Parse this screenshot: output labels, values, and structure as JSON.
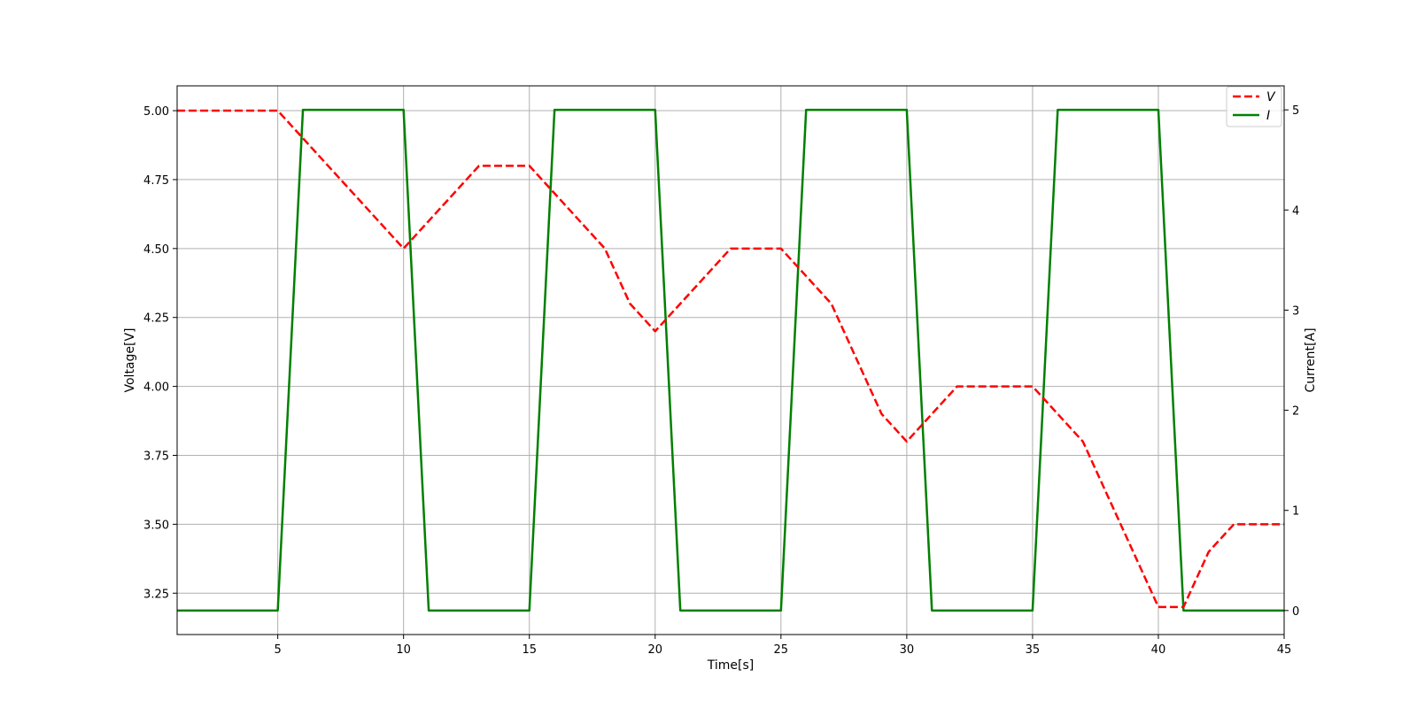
{
  "chart_data": {
    "type": "line",
    "title": "",
    "xlabel": "Time[s]",
    "ylabel": "Voltage[V]",
    "y2label": "Current[A]",
    "xlim": [
      1,
      45
    ],
    "ylim": [
      3.1,
      5.09
    ],
    "y2lim": [
      -0.24,
      5.24
    ],
    "x_ticks": [
      "5",
      "10",
      "15",
      "20",
      "25",
      "30",
      "35",
      "40",
      "45"
    ],
    "y_ticks": [
      "3.25",
      "3.50",
      "3.75",
      "4.00",
      "4.25",
      "4.50",
      "4.75",
      "5.00"
    ],
    "y2_ticks": [
      "0",
      "1",
      "2",
      "3",
      "4",
      "5"
    ],
    "grid": true,
    "legend_position": "top-right",
    "series": [
      {
        "name": "V",
        "axis": "left",
        "color": "#ff0000",
        "style": "dashed",
        "x": [
          1,
          2,
          3,
          4,
          5,
          6,
          7,
          8,
          9,
          10,
          11,
          12,
          13,
          14,
          15,
          16,
          17,
          18,
          19,
          20,
          21,
          22,
          23,
          24,
          25,
          26,
          27,
          28,
          29,
          30,
          31,
          32,
          33,
          34,
          35,
          36,
          37,
          38,
          39,
          40,
          41,
          42,
          43,
          44,
          45
        ],
        "values": [
          5.0,
          5.0,
          5.0,
          5.0,
          5.0,
          4.9,
          4.8,
          4.7,
          4.6,
          4.5,
          4.6,
          4.7,
          4.8,
          4.8,
          4.8,
          4.7,
          4.6,
          4.5,
          4.3,
          4.2,
          4.3,
          4.4,
          4.5,
          4.5,
          4.5,
          4.4,
          4.3,
          4.1,
          3.9,
          3.8,
          3.9,
          4.0,
          4.0,
          4.0,
          4.0,
          3.9,
          3.8,
          3.6,
          3.4,
          3.2,
          3.2,
          3.4,
          3.5,
          3.5,
          3.5
        ]
      },
      {
        "name": "I",
        "axis": "right",
        "color": "#008000",
        "style": "solid",
        "x": [
          1,
          2,
          3,
          4,
          5,
          6,
          7,
          8,
          9,
          10,
          11,
          12,
          13,
          14,
          15,
          16,
          17,
          18,
          19,
          20,
          21,
          22,
          23,
          24,
          25,
          26,
          27,
          28,
          29,
          30,
          31,
          32,
          33,
          34,
          35,
          36,
          37,
          38,
          39,
          40,
          41,
          42,
          43,
          44,
          45
        ],
        "values": [
          0,
          0,
          0,
          0,
          0,
          5,
          5,
          5,
          5,
          5,
          0,
          0,
          0,
          0,
          0,
          5,
          5,
          5,
          5,
          5,
          0,
          0,
          0,
          0,
          0,
          5,
          5,
          5,
          5,
          5,
          0,
          0,
          0,
          0,
          0,
          5,
          5,
          5,
          5,
          5,
          0,
          0,
          0,
          0,
          0
        ]
      }
    ]
  }
}
